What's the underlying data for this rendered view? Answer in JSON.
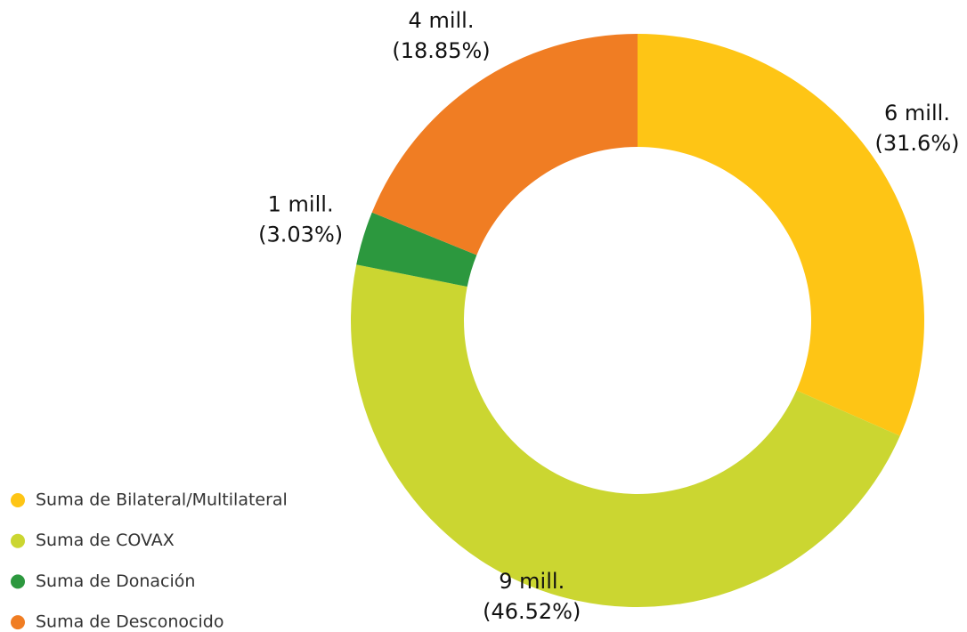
{
  "chart_data": {
    "type": "donut",
    "categories": [
      "Suma de Bilateral/Multilateral",
      "Suma de COVAX",
      "Suma de Donación",
      "Suma de Desconocido"
    ],
    "values": [
      31.6,
      46.52,
      3.03,
      18.85
    ],
    "value_labels": [
      "(31.6%)",
      "(46.52%)",
      "(3.03%)",
      "(18.85%)"
    ],
    "amount_labels": [
      "6 mill.",
      "9 mill.",
      "1 mill.",
      "4 mill."
    ],
    "colors": [
      "#fec515",
      "#cbd631",
      "#2c983e",
      "#f07d23"
    ],
    "legend": "bottom-left"
  }
}
